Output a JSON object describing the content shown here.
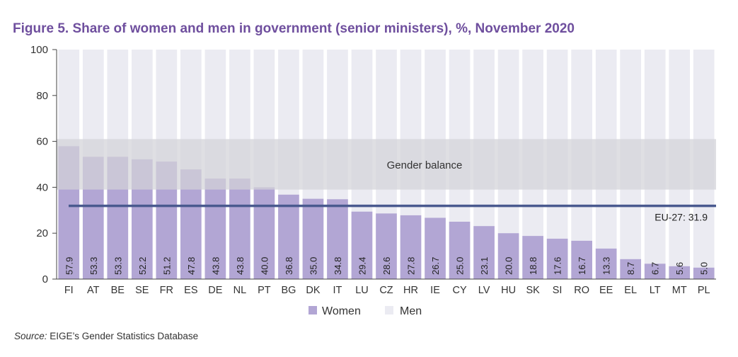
{
  "title": "Figure 5. Share of women and men in government (senior ministers), %, November 2020",
  "source_label": "Source:",
  "source_text": " EIGE’s Gender Statistics Database",
  "colors": {
    "title": "#6f4f9e",
    "women": "#b2a6d4",
    "men": "#ebebf2",
    "band": "#d3d3d8",
    "eu_line": "#4a5a8f",
    "axis": "#444444"
  },
  "chart_data": {
    "type": "bar",
    "stacked": true,
    "categories": [
      "FI",
      "AT",
      "BE",
      "SE",
      "FR",
      "ES",
      "DE",
      "NL",
      "PT",
      "BG",
      "DK",
      "IT",
      "LU",
      "CZ",
      "HR",
      "IE",
      "CY",
      "LV",
      "HU",
      "SK",
      "SI",
      "RO",
      "EE",
      "EL",
      "LT",
      "MT",
      "PL"
    ],
    "series": [
      {
        "name": "Women",
        "values": [
          57.9,
          53.3,
          53.3,
          52.2,
          51.2,
          47.8,
          43.8,
          43.8,
          40.0,
          36.8,
          35.0,
          34.8,
          29.4,
          28.6,
          27.8,
          26.7,
          25.0,
          23.1,
          20.0,
          18.8,
          17.6,
          16.7,
          13.3,
          8.7,
          6.7,
          5.6,
          5.0
        ]
      },
      {
        "name": "Men",
        "values": [
          42.1,
          46.7,
          46.7,
          47.8,
          48.8,
          52.2,
          56.2,
          56.2,
          60.0,
          63.2,
          65.0,
          65.2,
          70.6,
          71.4,
          72.2,
          73.3,
          75.0,
          76.9,
          80.0,
          81.2,
          82.4,
          83.3,
          86.7,
          91.3,
          93.3,
          94.4,
          95.0
        ]
      }
    ],
    "data_labels": [
      "57.9",
      "53.3",
      "53.3",
      "52.2",
      "51.2",
      "47.8",
      "43.8",
      "43.8",
      "40.0",
      "36.8",
      "35.0",
      "34.8",
      "29.4",
      "28.6",
      "27.8",
      "26.7",
      "25.0",
      "23.1",
      "20.0",
      "18.8",
      "17.6",
      "16.7",
      "13.3",
      "8.7",
      "6.7",
      "5.6",
      "5.0"
    ],
    "ylim": [
      0,
      100
    ],
    "yticks": [
      0,
      20,
      40,
      60,
      80,
      100
    ],
    "ytick_labels": [
      "0",
      "20",
      "40",
      "60",
      "80",
      "100"
    ],
    "gender_balance": {
      "label": "Gender balance",
      "range": [
        39,
        61
      ]
    },
    "reference_line": {
      "label": "EU-27: 31.9",
      "value": 31.9
    },
    "legend": {
      "position": "bottom",
      "entries": [
        "Women",
        "Men"
      ]
    },
    "grid": false
  }
}
